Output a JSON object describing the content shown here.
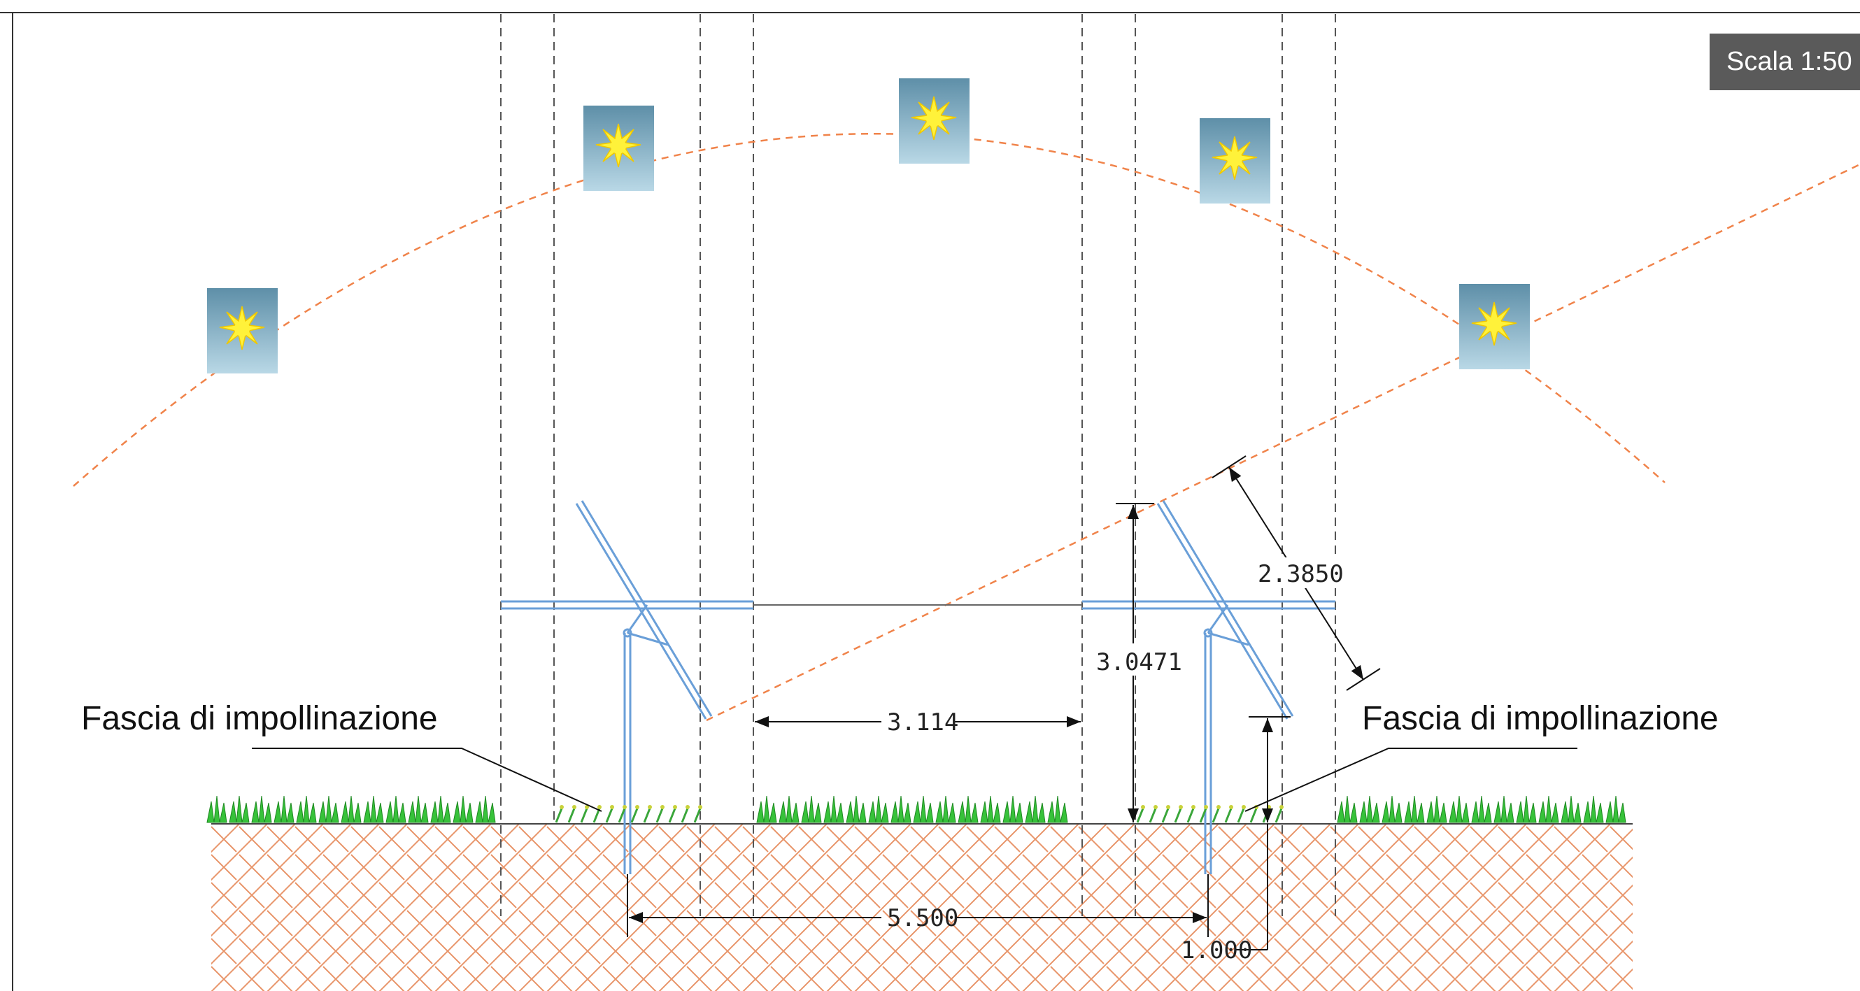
{
  "scale": "Scala 1:50",
  "labels": {
    "pollination_left": "Fascia di impollinazione",
    "pollination_right": "Fascia di impollinazione"
  },
  "dimensions": {
    "panel_length": "2.3850",
    "hub_height": "3.0471",
    "clear_gap": "3.114",
    "row_pitch": "5.500",
    "ground_clearance": "1.000"
  },
  "colors": {
    "structure": "#6a9fd8",
    "sun_path": "#f0834a",
    "soil_hatch": "#e8956a",
    "grass": "#37c23a",
    "sun_core": "#fff23a",
    "sun_box_top": "#5e8fa8",
    "sun_box_bottom": "#b9d8e6"
  },
  "suns": 5
}
